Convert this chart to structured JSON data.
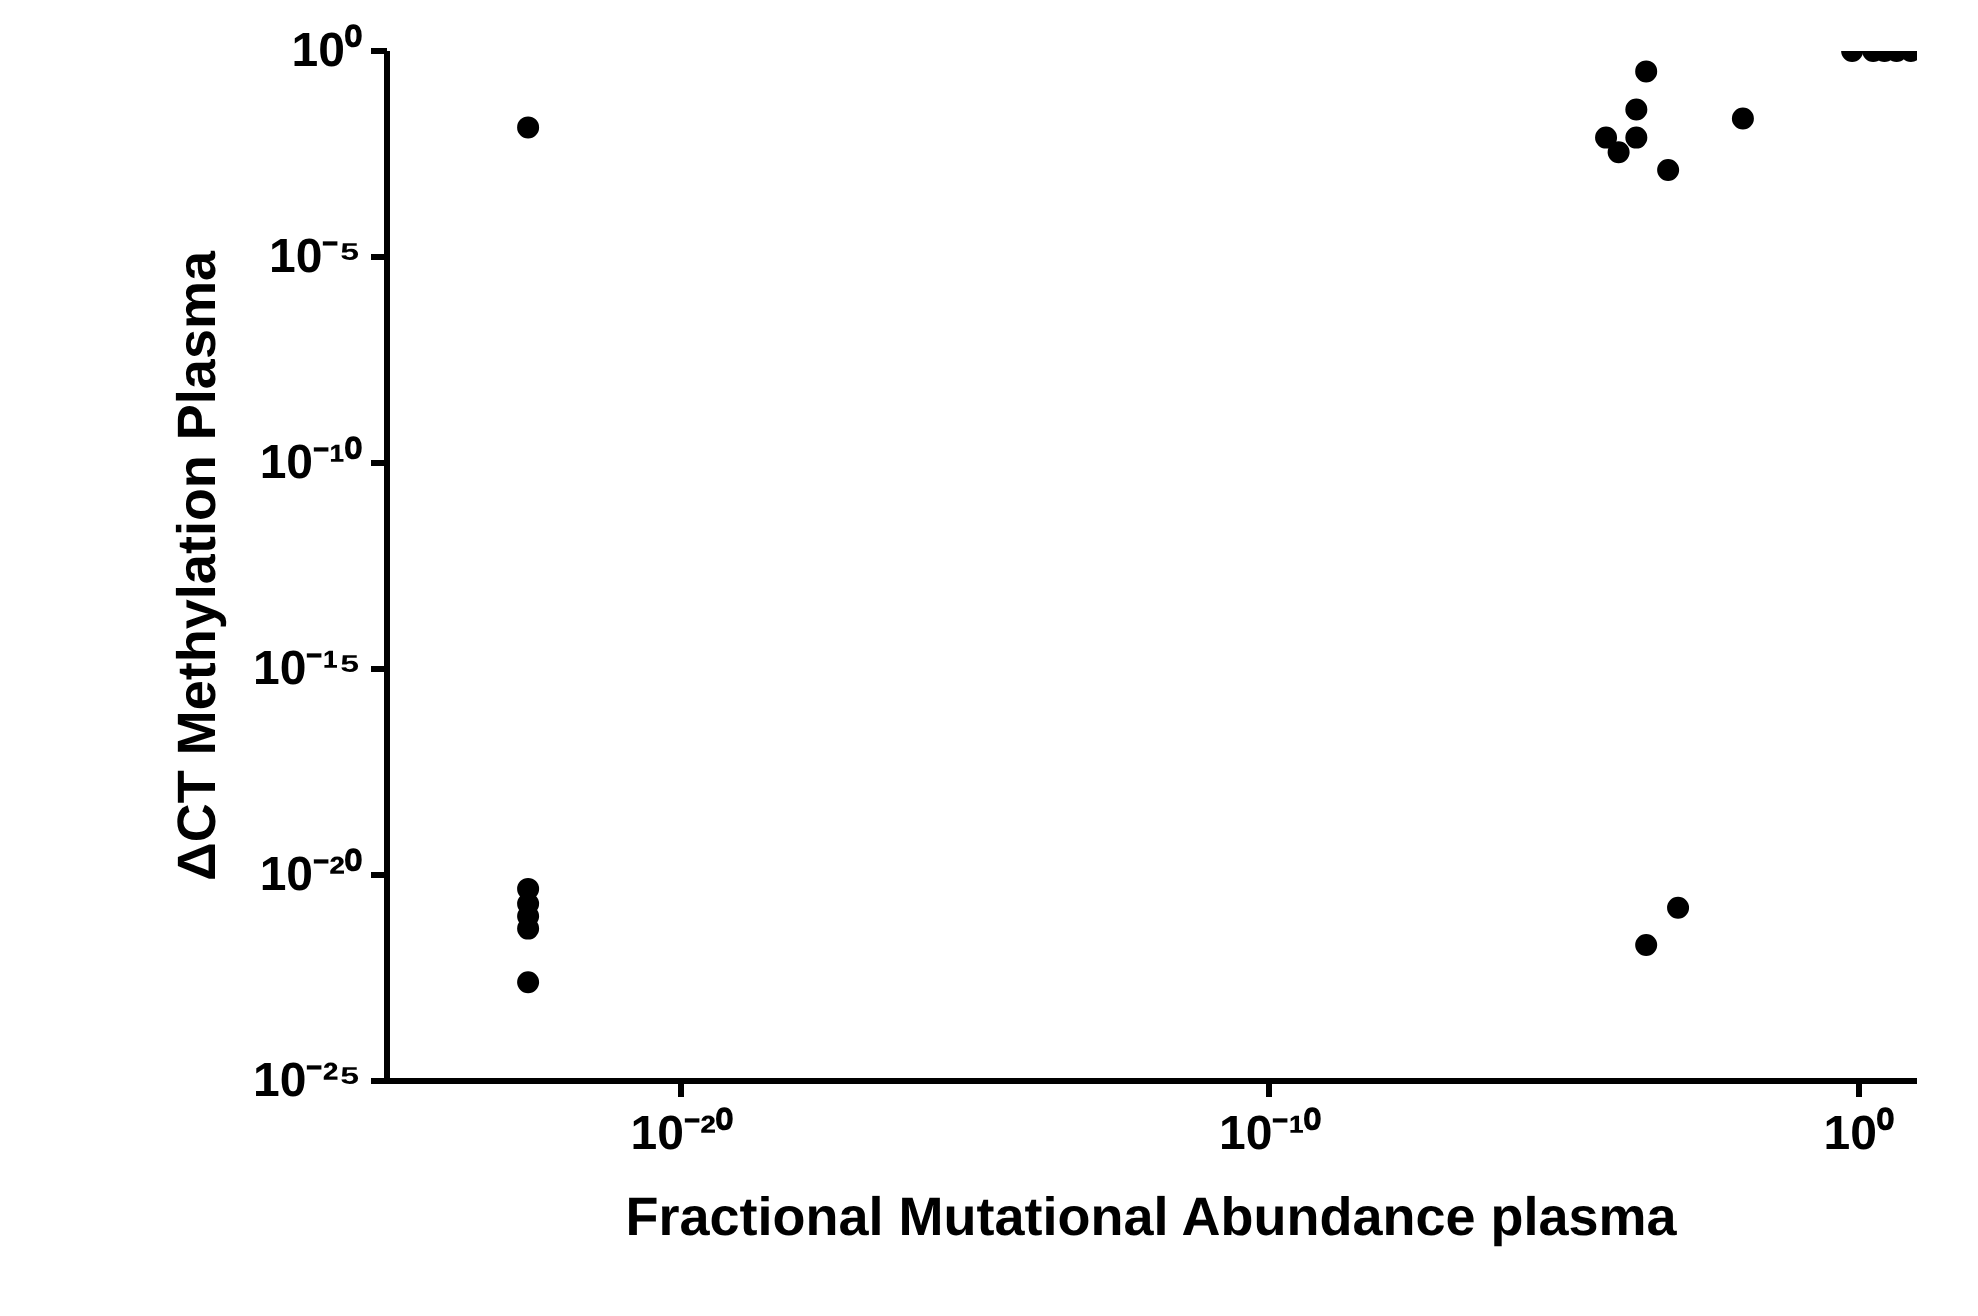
{
  "chart_data": {
    "type": "scatter",
    "xlabel": "Fractional Mutational Abundance plasma",
    "ylabel": "ΔCT Methylation Plasma",
    "log": "xy",
    "grid": false,
    "marker": "circle",
    "series": [
      {
        "color": "#000000",
        "x": [
          2.5e-23,
          2.5e-23,
          2.5e-23,
          2.5e-23,
          2.5e-23,
          2.5e-23,
          0.00025,
          0.00087,
          0.00025,
          0.00017,
          5.2e-05,
          8.5e-05,
          0.00017,
          0.00059,
          0.011,
          0.79,
          1.8,
          2.8,
          4.5,
          7.9
        ],
        "values": [
          0.014,
          4.6e-21,
          2e-21,
          1e-21,
          5e-22,
          2.5e-23,
          2e-22,
          1.6e-21,
          0.32,
          0.038,
          0.0079,
          0.0035,
          0.0079,
          0.0013,
          0.023,
          1,
          1,
          1,
          1,
          1
        ]
      }
    ],
    "xlim": [
      1e-25,
      10
    ],
    "ylim": [
      1e-25,
      1
    ],
    "xticks": [
      {
        "value": 1e-20,
        "label": "10⁻²⁰"
      },
      {
        "value": 1e-10,
        "label": "10⁻¹⁰"
      },
      {
        "value": 1,
        "label": "10⁰"
      }
    ],
    "yticks": [
      {
        "value": 1e-25,
        "label": "10⁻²⁵"
      },
      {
        "value": 1e-20,
        "label": "10⁻²⁰"
      },
      {
        "value": 1e-15,
        "label": "10⁻¹⁵"
      },
      {
        "value": 1e-10,
        "label": "10⁻¹⁰"
      },
      {
        "value": 1e-05,
        "label": "10⁻⁵"
      },
      {
        "value": 1,
        "label": "10⁰"
      }
    ]
  }
}
